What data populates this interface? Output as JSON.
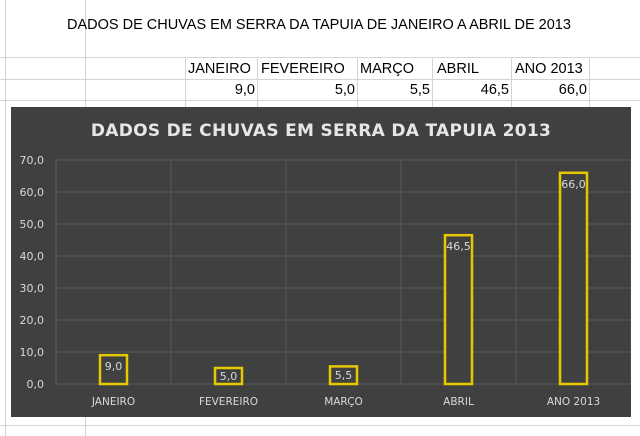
{
  "sheet": {
    "title": "DADOS DE CHUVAS EM SERRA DA TAPUIA DE JANEIRO A ABRIL DE 2013",
    "headers": [
      "JANEIRO",
      "FEVEREIRO",
      "MARÇO",
      "ABRIL",
      "ANO 2013"
    ],
    "values": [
      "9,0",
      "5,0",
      "5,5",
      "46,5",
      "66,0"
    ]
  },
  "chart_data": {
    "type": "bar",
    "title": "DADOS DE CHUVAS EM SERRA DA TAPUIA 2013",
    "categories": [
      "JANEIRO",
      "FEVEREIRO",
      "MARÇO",
      "ABRIL",
      "ANO 2013"
    ],
    "values": [
      9.0,
      5.0,
      5.5,
      46.5,
      66.0
    ],
    "data_labels": [
      "9,0",
      "5,0",
      "5,5",
      "46,5",
      "66,0"
    ],
    "ylim": [
      0,
      70
    ],
    "yticks": [
      0,
      10,
      20,
      30,
      40,
      50,
      60,
      70
    ],
    "ytick_labels": [
      "0,0",
      "10,0",
      "20,0",
      "30,0",
      "40,0",
      "50,0",
      "60,0",
      "70,0"
    ],
    "xlabel": "",
    "ylabel": "",
    "grid": true,
    "legend": "none",
    "colors": {
      "background": "#404040",
      "bar_outline": "#e6c800",
      "bar_fill": "#404040",
      "text": "#d9d9d9",
      "grid": "#5a5a5a"
    }
  }
}
